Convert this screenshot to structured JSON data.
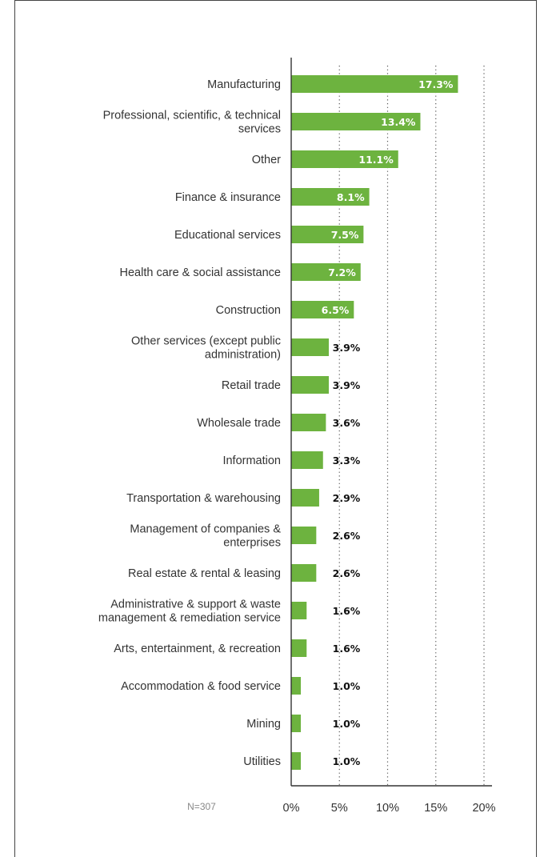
{
  "note": "N=307",
  "colors": {
    "bar": "#6db33f",
    "axis": "#333333",
    "grid": "#555555"
  },
  "chart_data": {
    "type": "bar",
    "orientation": "horizontal",
    "categories": [
      [
        "Manufacturing"
      ],
      [
        "Professional, scientific, & technical",
        "services"
      ],
      [
        "Other"
      ],
      [
        "Finance & insurance"
      ],
      [
        "Educational services"
      ],
      [
        "Health care & social assistance"
      ],
      [
        "Construction"
      ],
      [
        "Other services (except public",
        "administration)"
      ],
      [
        "Retail trade"
      ],
      [
        "Wholesale trade"
      ],
      [
        "Information"
      ],
      [
        "Transportation & warehousing"
      ],
      [
        "Management of companies &",
        "enterprises"
      ],
      [
        "Real estate & rental & leasing"
      ],
      [
        "Administrative & support & waste",
        "management & remediation service"
      ],
      [
        "Arts, entertainment, & recreation"
      ],
      [
        "Accommodation & food service"
      ],
      [
        "Mining"
      ],
      [
        "Utilities"
      ]
    ],
    "values": [
      17.3,
      13.4,
      11.1,
      8.1,
      7.5,
      7.2,
      6.5,
      3.9,
      3.9,
      3.6,
      3.3,
      2.9,
      2.6,
      2.6,
      1.6,
      1.6,
      1.0,
      1.0,
      1.0
    ],
    "value_labels": [
      "17.3%",
      "13.4%",
      "11.1%",
      "8.1%",
      "7.5%",
      "7.2%",
      "6.5%",
      "3.9%",
      "3.9%",
      "3.6%",
      "3.3%",
      "2.9%",
      "2.6%",
      "2.6%",
      "1.6%",
      "1.6%",
      "1.0%",
      "1.0%",
      "1.0%"
    ],
    "xlim": [
      0,
      20
    ],
    "xticks": [
      0,
      5,
      10,
      15,
      20
    ],
    "xtick_labels": [
      "0%",
      "5%",
      "10%",
      "15%",
      "20%"
    ],
    "grid": "vertical dotted",
    "title": "",
    "xlabel": "",
    "ylabel": ""
  }
}
